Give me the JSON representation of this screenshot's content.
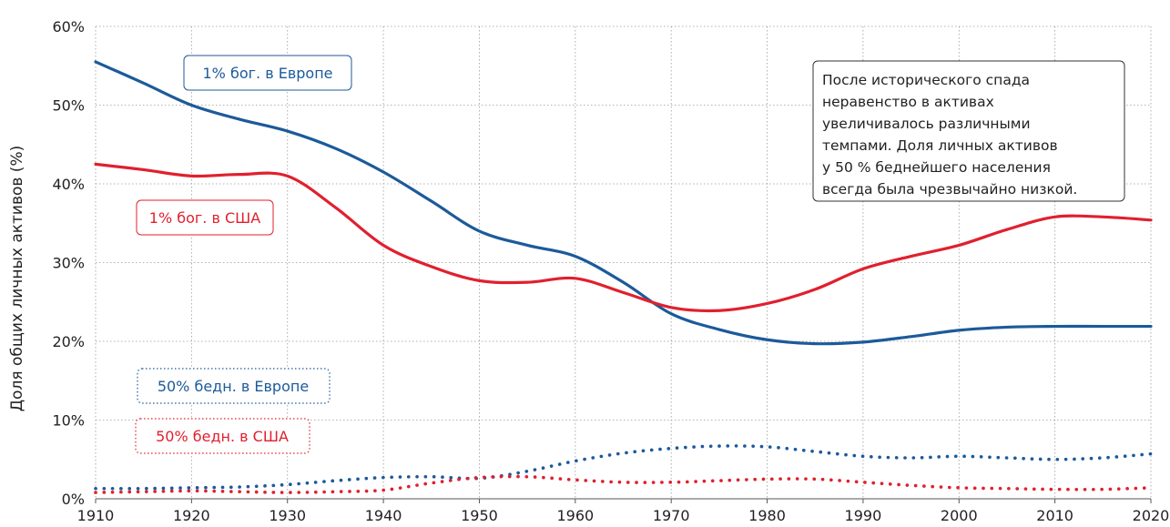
{
  "chart_data": {
    "type": "line",
    "ylabel": "Доля общих личных активов (%)",
    "xlim": [
      1910,
      2020
    ],
    "ylim": [
      0,
      60
    ],
    "x_ticks": [
      "1910",
      "1920",
      "1930",
      "1940",
      "1950",
      "1960",
      "1970",
      "1980",
      "1990",
      "2000",
      "2010",
      "2020"
    ],
    "y_ticks": [
      "0%",
      "10%",
      "20%",
      "30%",
      "40%",
      "50%",
      "60%"
    ],
    "grid": true,
    "x": [
      1910,
      1915,
      1920,
      1925,
      1930,
      1935,
      1940,
      1945,
      1950,
      1955,
      1960,
      1965,
      1970,
      1975,
      1980,
      1985,
      1990,
      1995,
      2000,
      2005,
      2010,
      2015,
      2020
    ],
    "series": [
      {
        "name": "1% бог. в Европе",
        "color": "#1c5a9a",
        "style": "solid",
        "values": [
          55.5,
          52.8,
          50.0,
          48.2,
          46.7,
          44.5,
          41.5,
          37.8,
          34.0,
          32.2,
          30.8,
          27.5,
          23.5,
          21.5,
          20.2,
          19.7,
          19.9,
          20.6,
          21.4,
          21.8,
          21.9,
          21.9,
          21.9
        ]
      },
      {
        "name": "1% бог. в США",
        "color": "#e0202e",
        "style": "solid",
        "values": [
          42.5,
          41.8,
          41.0,
          41.2,
          41.0,
          37.0,
          32.2,
          29.5,
          27.7,
          27.5,
          28.0,
          26.2,
          24.3,
          23.9,
          24.8,
          26.6,
          29.2,
          30.8,
          32.2,
          34.2,
          35.8,
          35.8,
          35.4
        ]
      },
      {
        "name": "50% бедн. в Европе",
        "color": "#1c5a9a",
        "style": "dotted",
        "values": [
          1.3,
          1.3,
          1.4,
          1.5,
          1.8,
          2.3,
          2.7,
          2.8,
          2.6,
          3.5,
          4.8,
          5.8,
          6.4,
          6.7,
          6.6,
          6.0,
          5.4,
          5.2,
          5.4,
          5.2,
          5.0,
          5.2,
          5.7
        ]
      },
      {
        "name": "50% бедн. в США",
        "color": "#e0202e",
        "style": "dotted",
        "values": [
          0.8,
          0.9,
          1.0,
          0.9,
          0.8,
          0.9,
          1.1,
          2.0,
          2.7,
          2.8,
          2.4,
          2.1,
          2.1,
          2.3,
          2.5,
          2.5,
          2.1,
          1.7,
          1.4,
          1.3,
          1.2,
          1.2,
          1.4
        ]
      }
    ],
    "labels": {
      "eu_top": "1% бог. в Европе",
      "us_top": "1% бог. в США",
      "eu_bottom": "50% бедн. в Европе",
      "us_bottom": "50% бедн. в США"
    },
    "annotation": [
      "После исторического спада",
      "неравенство в активах",
      "увеличивалось различными",
      "темпами. Доля личных активов",
      "у 50 % беднейшего населения",
      "всегда была чрезвычайно низкой."
    ]
  }
}
